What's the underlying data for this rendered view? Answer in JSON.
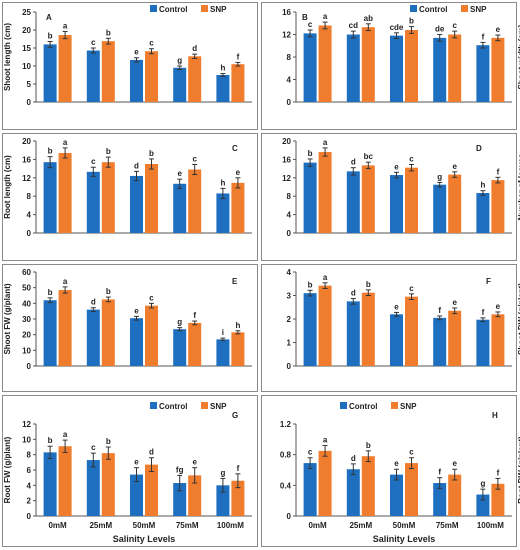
{
  "figure": {
    "xlabel": "Salinity Levels",
    "categories": [
      "0mM",
      "25mM",
      "50mM",
      "75mM",
      "100mM"
    ],
    "colors": {
      "control": "#1f6fc0",
      "snp": "#f07d2d",
      "error": "#333333"
    }
  },
  "chart_data": [
    {
      "type": "bar",
      "panel": "A",
      "ylabel": "Shoot length (cm)",
      "ylim": [
        0,
        25
      ],
      "yticks": [
        0,
        5,
        10,
        15,
        20,
        25
      ],
      "legend": "top-right",
      "grid": false,
      "categories": [
        "0mM",
        "25mM",
        "50mM",
        "75mM",
        "100mM"
      ],
      "series": [
        {
          "name": "Control",
          "values": [
            16.0,
            14.3,
            11.7,
            9.5,
            7.5
          ],
          "errors": [
            0.8,
            0.7,
            0.6,
            0.5,
            0.4
          ],
          "letters": [
            "b",
            "c",
            "e",
            "g",
            "h"
          ]
        },
        {
          "name": "SNP",
          "values": [
            18.6,
            16.9,
            14.1,
            12.7,
            10.5
          ],
          "errors": [
            1.0,
            0.8,
            0.7,
            0.6,
            0.5
          ],
          "letters": [
            "a",
            "b",
            "c",
            "d",
            "f"
          ]
        }
      ]
    },
    {
      "type": "bar",
      "panel": "B",
      "ylabel": "Shoot width (cm)",
      "ylim": [
        0,
        16
      ],
      "yticks": [
        0,
        4,
        8,
        12,
        16
      ],
      "legend": "top-right",
      "grid": false,
      "categories": [
        "0mM",
        "25mM",
        "50mM",
        "75mM",
        "100mM"
      ],
      "series": [
        {
          "name": "Control",
          "values": [
            12.2,
            12.0,
            11.8,
            11.4,
            10.1
          ],
          "errors": [
            0.6,
            0.6,
            0.5,
            0.6,
            0.5
          ],
          "letters": [
            "c",
            "cd",
            "cde",
            "de",
            "f"
          ]
        },
        {
          "name": "SNP",
          "values": [
            13.6,
            13.3,
            12.8,
            12.0,
            11.4
          ],
          "errors": [
            0.6,
            0.6,
            0.6,
            0.6,
            0.5
          ],
          "letters": [
            "a",
            "ab",
            "b",
            "c",
            "e"
          ]
        }
      ]
    },
    {
      "type": "bar",
      "panel": "C",
      "ylabel": "Root length (cm)",
      "ylim": [
        0,
        20
      ],
      "yticks": [
        0,
        4,
        8,
        12,
        16,
        20
      ],
      "grid": false,
      "categories": [
        "0mM",
        "25mM",
        "50mM",
        "75mM",
        "100mM"
      ],
      "series": [
        {
          "name": "Control",
          "values": [
            15.4,
            13.3,
            12.4,
            10.7,
            8.6
          ],
          "errors": [
            1.2,
            1.0,
            1.0,
            1.0,
            1.1
          ],
          "letters": [
            "b",
            "c",
            "d",
            "e",
            "h"
          ]
        },
        {
          "name": "SNP",
          "values": [
            17.4,
            15.4,
            15.0,
            13.8,
            10.9
          ],
          "errors": [
            1.1,
            1.1,
            1.1,
            1.1,
            1.1
          ],
          "letters": [
            "a",
            "b",
            "b",
            "c",
            "e"
          ]
        }
      ]
    },
    {
      "type": "bar",
      "panel": "D",
      "ylabel": "Number of leaves",
      "ylim": [
        0,
        20
      ],
      "yticks": [
        0,
        4,
        8,
        12,
        16,
        20
      ],
      "grid": false,
      "categories": [
        "0mM",
        "25mM",
        "50mM",
        "75mM",
        "100mM"
      ],
      "series": [
        {
          "name": "Control",
          "values": [
            15.3,
            13.4,
            12.6,
            10.5,
            8.7
          ],
          "errors": [
            0.8,
            0.8,
            0.6,
            0.5,
            0.5
          ],
          "letters": [
            "b",
            "d",
            "e",
            "g",
            "h"
          ]
        },
        {
          "name": "SNP",
          "values": [
            17.6,
            14.7,
            14.2,
            12.7,
            11.5
          ],
          "errors": [
            0.9,
            0.7,
            0.7,
            0.6,
            0.6
          ],
          "letters": [
            "a",
            "bc",
            "c",
            "e",
            "f"
          ]
        }
      ]
    },
    {
      "type": "bar",
      "panel": "E",
      "ylabel": "Shoot FW (g/plant)",
      "ylim": [
        0,
        60
      ],
      "yticks": [
        0,
        10,
        20,
        30,
        40,
        50,
        60
      ],
      "grid": false,
      "categories": [
        "0mM",
        "25mM",
        "50mM",
        "75mM",
        "100mM"
      ],
      "series": [
        {
          "name": "Control",
          "values": [
            42.0,
            36.0,
            30.5,
            23.5,
            17.0
          ],
          "errors": [
            1.5,
            1.2,
            1.2,
            1.0,
            0.8
          ],
          "letters": [
            "b",
            "d",
            "e",
            "g",
            "i"
          ]
        },
        {
          "name": "SNP",
          "values": [
            48.5,
            42.5,
            38.5,
            27.5,
            21.5
          ],
          "errors": [
            2.0,
            1.5,
            1.5,
            1.2,
            1.0
          ],
          "letters": [
            "a",
            "b",
            "c",
            "f",
            "h"
          ]
        }
      ]
    },
    {
      "type": "bar",
      "panel": "F",
      "ylabel": "Shoot DW (g/plant)",
      "ylim": [
        0,
        4
      ],
      "yticks": [
        0,
        1,
        2,
        3,
        4
      ],
      "grid": false,
      "categories": [
        "0mM",
        "25mM",
        "50mM",
        "75mM",
        "100mM"
      ],
      "series": [
        {
          "name": "Control",
          "values": [
            3.1,
            2.75,
            2.2,
            2.05,
            1.97
          ],
          "errors": [
            0.12,
            0.12,
            0.08,
            0.08,
            0.08
          ],
          "letters": [
            "b",
            "d",
            "e",
            "f",
            "f"
          ]
        },
        {
          "name": "SNP",
          "values": [
            3.42,
            3.12,
            2.95,
            2.35,
            2.2
          ],
          "errors": [
            0.12,
            0.12,
            0.12,
            0.12,
            0.1
          ],
          "letters": [
            "a",
            "b",
            "c",
            "e",
            "e"
          ]
        }
      ]
    },
    {
      "type": "bar",
      "panel": "G",
      "ylabel": "Root FW (g/plant)",
      "ylim": [
        0,
        12
      ],
      "yticks": [
        0,
        2,
        4,
        6,
        8,
        10,
        12
      ],
      "legend": "top-right",
      "grid": false,
      "categories": [
        "0mM",
        "25mM",
        "50mM",
        "75mM",
        "100mM"
      ],
      "series": [
        {
          "name": "Control",
          "values": [
            8.3,
            7.3,
            5.4,
            4.3,
            4.0
          ],
          "errors": [
            0.8,
            0.9,
            0.9,
            1.0,
            0.9
          ],
          "letters": [
            "b",
            "c",
            "e",
            "fg",
            "g"
          ]
        },
        {
          "name": "SNP",
          "values": [
            9.1,
            8.2,
            6.7,
            5.3,
            4.6
          ],
          "errors": [
            0.8,
            0.8,
            0.9,
            1.0,
            0.9
          ],
          "letters": [
            "a",
            "b",
            "d",
            "e",
            "f"
          ]
        }
      ]
    },
    {
      "type": "bar",
      "panel": "H",
      "ylabel": "Root DW (g/plant)",
      "ylim": [
        0,
        1.2
      ],
      "yticks": [
        0,
        0.4,
        0.8,
        1.2
      ],
      "legend": "top-center",
      "grid": false,
      "categories": [
        "0mM",
        "25mM",
        "50mM",
        "75mM",
        "100mM"
      ],
      "series": [
        {
          "name": "Control",
          "values": [
            0.69,
            0.61,
            0.54,
            0.43,
            0.28
          ],
          "errors": [
            0.07,
            0.07,
            0.07,
            0.07,
            0.07
          ],
          "letters": [
            "c",
            "d",
            "e",
            "f",
            "g"
          ]
        },
        {
          "name": "SNP",
          "values": [
            0.85,
            0.78,
            0.69,
            0.54,
            0.42
          ],
          "errors": [
            0.07,
            0.07,
            0.07,
            0.07,
            0.07
          ],
          "letters": [
            "a",
            "b",
            "c",
            "e",
            "f"
          ]
        }
      ]
    }
  ]
}
